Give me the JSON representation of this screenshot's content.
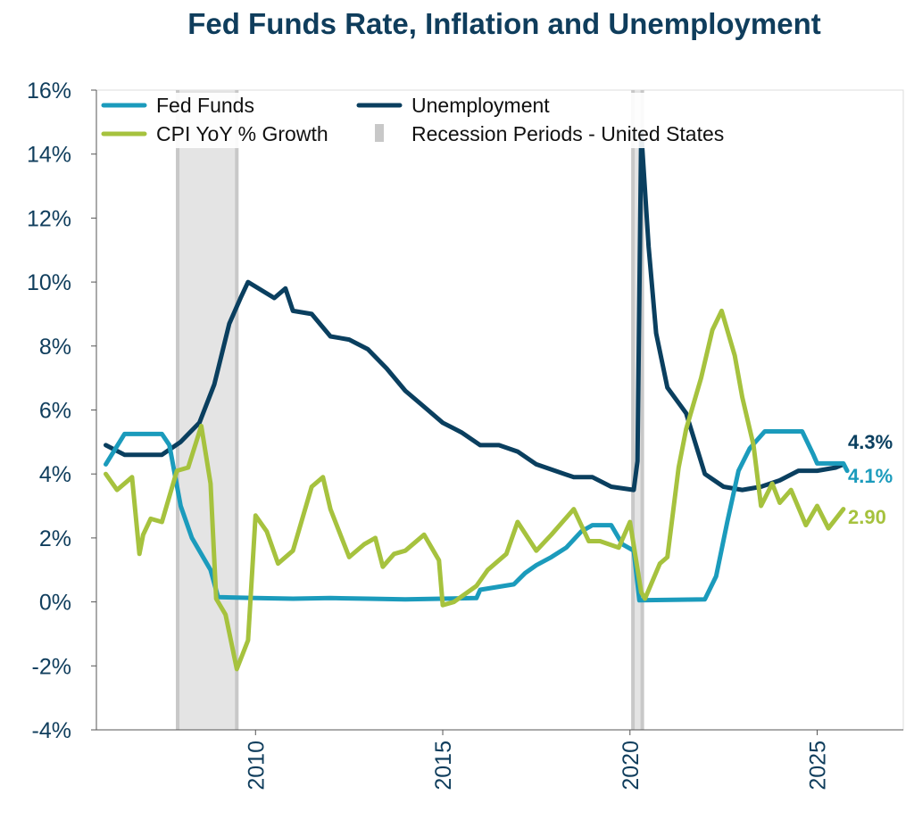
{
  "chart_data": {
    "type": "line",
    "title": "Fed Funds Rate, Inflation and Unemployment",
    "xlim": [
      2005.75,
      2027.3
    ],
    "ylim": [
      -4,
      16
    ],
    "grid": false,
    "legend_placement": "top-left",
    "x_ticks": [
      2010,
      2015,
      2020,
      2025
    ],
    "y_ticks": [
      -4,
      -2,
      0,
      2,
      4,
      6,
      8,
      10,
      12,
      14,
      16
    ],
    "y_tick_labels": [
      "-4%",
      "-2%",
      "0%",
      "2%",
      "4%",
      "6%",
      "8%",
      "10%",
      "12%",
      "14%",
      "16%"
    ],
    "recessions": [
      {
        "name": "Recession Periods - United States",
        "start": 2007.92,
        "end": 2009.5
      },
      {
        "name": "Recession Periods - United States",
        "start": 2020.08,
        "end": 2020.33
      }
    ],
    "recession_color": "#c8c8c8",
    "series": [
      {
        "name": "Fed Funds",
        "color": "#1b9bbc",
        "end_label": "4.1%",
        "points": [
          [
            2006.0,
            4.3
          ],
          [
            2006.5,
            5.25
          ],
          [
            2007.5,
            5.25
          ],
          [
            2007.7,
            4.9
          ],
          [
            2008.0,
            3.0
          ],
          [
            2008.3,
            2.0
          ],
          [
            2008.8,
            1.0
          ],
          [
            2009.0,
            0.15
          ],
          [
            2010.0,
            0.12
          ],
          [
            2011.0,
            0.1
          ],
          [
            2012.0,
            0.12
          ],
          [
            2013.0,
            0.1
          ],
          [
            2014.0,
            0.08
          ],
          [
            2015.9,
            0.12
          ],
          [
            2016.0,
            0.38
          ],
          [
            2016.9,
            0.55
          ],
          [
            2017.2,
            0.9
          ],
          [
            2017.5,
            1.15
          ],
          [
            2017.9,
            1.4
          ],
          [
            2018.3,
            1.7
          ],
          [
            2018.7,
            2.2
          ],
          [
            2019.0,
            2.4
          ],
          [
            2019.5,
            2.4
          ],
          [
            2019.8,
            1.8
          ],
          [
            2020.1,
            1.6
          ],
          [
            2020.25,
            0.05
          ],
          [
            2022.0,
            0.08
          ],
          [
            2022.3,
            0.8
          ],
          [
            2022.6,
            2.5
          ],
          [
            2022.9,
            4.1
          ],
          [
            2023.2,
            4.8
          ],
          [
            2023.6,
            5.33
          ],
          [
            2024.6,
            5.33
          ],
          [
            2024.9,
            4.6
          ],
          [
            2025.0,
            4.33
          ],
          [
            2025.7,
            4.33
          ],
          [
            2025.8,
            4.1
          ]
        ]
      },
      {
        "name": "Unemployment",
        "color": "#0a3f5f",
        "end_label": "4.3%",
        "points": [
          [
            2006.0,
            4.9
          ],
          [
            2006.5,
            4.6
          ],
          [
            2007.0,
            4.6
          ],
          [
            2007.5,
            4.6
          ],
          [
            2008.0,
            5.0
          ],
          [
            2008.5,
            5.6
          ],
          [
            2008.9,
            6.8
          ],
          [
            2009.3,
            8.7
          ],
          [
            2009.6,
            9.5
          ],
          [
            2009.8,
            10.0
          ],
          [
            2010.5,
            9.5
          ],
          [
            2010.8,
            9.8
          ],
          [
            2011.0,
            9.1
          ],
          [
            2011.5,
            9.0
          ],
          [
            2012.0,
            8.3
          ],
          [
            2012.5,
            8.2
          ],
          [
            2013.0,
            7.9
          ],
          [
            2013.5,
            7.3
          ],
          [
            2014.0,
            6.6
          ],
          [
            2014.5,
            6.1
          ],
          [
            2015.0,
            5.6
          ],
          [
            2015.5,
            5.3
          ],
          [
            2016.0,
            4.9
          ],
          [
            2016.5,
            4.9
          ],
          [
            2017.0,
            4.7
          ],
          [
            2017.5,
            4.3
          ],
          [
            2018.0,
            4.1
          ],
          [
            2018.5,
            3.9
          ],
          [
            2019.0,
            3.9
          ],
          [
            2019.5,
            3.6
          ],
          [
            2020.1,
            3.5
          ],
          [
            2020.2,
            4.4
          ],
          [
            2020.3,
            14.7
          ],
          [
            2020.5,
            11.1
          ],
          [
            2020.7,
            8.4
          ],
          [
            2021.0,
            6.7
          ],
          [
            2021.5,
            5.9
          ],
          [
            2022.0,
            4.0
          ],
          [
            2022.5,
            3.6
          ],
          [
            2023.0,
            3.5
          ],
          [
            2023.5,
            3.6
          ],
          [
            2024.0,
            3.8
          ],
          [
            2024.5,
            4.1
          ],
          [
            2025.0,
            4.1
          ],
          [
            2025.5,
            4.2
          ],
          [
            2025.7,
            4.3
          ]
        ]
      },
      {
        "name": "CPI YoY % Growth",
        "color": "#a6c23e",
        "end_label": "2.90",
        "points": [
          [
            2006.0,
            4.0
          ],
          [
            2006.3,
            3.5
          ],
          [
            2006.7,
            3.9
          ],
          [
            2006.9,
            1.5
          ],
          [
            2007.0,
            2.1
          ],
          [
            2007.2,
            2.6
          ],
          [
            2007.5,
            2.5
          ],
          [
            2007.9,
            4.1
          ],
          [
            2008.2,
            4.2
          ],
          [
            2008.55,
            5.5
          ],
          [
            2008.8,
            3.7
          ],
          [
            2008.95,
            0.1
          ],
          [
            2009.2,
            -0.4
          ],
          [
            2009.5,
            -2.1
          ],
          [
            2009.8,
            -1.2
          ],
          [
            2010.0,
            2.7
          ],
          [
            2010.3,
            2.2
          ],
          [
            2010.6,
            1.2
          ],
          [
            2011.0,
            1.6
          ],
          [
            2011.5,
            3.6
          ],
          [
            2011.8,
            3.9
          ],
          [
            2012.0,
            2.9
          ],
          [
            2012.5,
            1.4
          ],
          [
            2012.9,
            1.8
          ],
          [
            2013.2,
            2.0
          ],
          [
            2013.4,
            1.1
          ],
          [
            2013.7,
            1.5
          ],
          [
            2014.0,
            1.6
          ],
          [
            2014.5,
            2.1
          ],
          [
            2014.9,
            1.3
          ],
          [
            2015.0,
            -0.1
          ],
          [
            2015.3,
            0.0
          ],
          [
            2015.9,
            0.5
          ],
          [
            2016.2,
            1.0
          ],
          [
            2016.7,
            1.5
          ],
          [
            2017.0,
            2.5
          ],
          [
            2017.5,
            1.6
          ],
          [
            2017.9,
            2.1
          ],
          [
            2018.5,
            2.9
          ],
          [
            2018.9,
            1.9
          ],
          [
            2019.2,
            1.9
          ],
          [
            2019.7,
            1.7
          ],
          [
            2020.0,
            2.5
          ],
          [
            2020.3,
            0.3
          ],
          [
            2020.4,
            0.1
          ],
          [
            2020.8,
            1.2
          ],
          [
            2021.0,
            1.4
          ],
          [
            2021.3,
            4.2
          ],
          [
            2021.5,
            5.4
          ],
          [
            2021.9,
            7.0
          ],
          [
            2022.2,
            8.5
          ],
          [
            2022.45,
            9.1
          ],
          [
            2022.8,
            7.7
          ],
          [
            2023.0,
            6.4
          ],
          [
            2023.3,
            4.9
          ],
          [
            2023.5,
            3.0
          ],
          [
            2023.8,
            3.7
          ],
          [
            2024.0,
            3.1
          ],
          [
            2024.3,
            3.5
          ],
          [
            2024.7,
            2.4
          ],
          [
            2025.0,
            3.0
          ],
          [
            2025.3,
            2.3
          ],
          [
            2025.7,
            2.9
          ]
        ]
      }
    ]
  }
}
